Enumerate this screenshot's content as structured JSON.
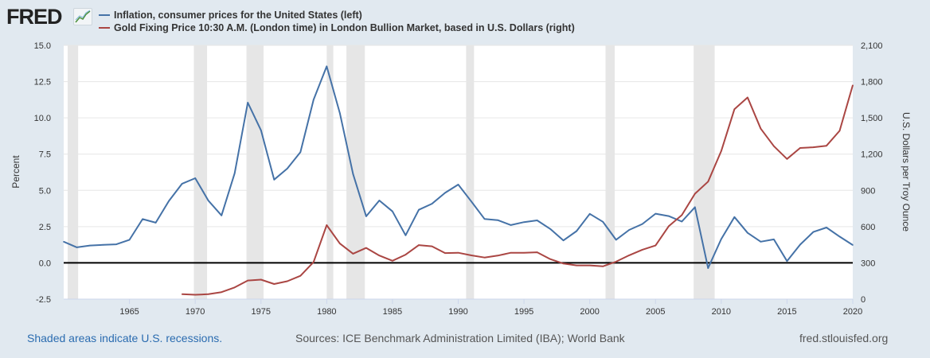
{
  "logo": "FRED",
  "legend": [
    {
      "label": "Inflation, consumer prices for the United States (left)",
      "color": "#4572a7"
    },
    {
      "label": "Gold Fixing Price 10:30 A.M. (London time) in London Bullion Market, based in U.S. Dollars (right)",
      "color": "#aa4643"
    }
  ],
  "footer": {
    "recessions_note": "Shaded areas indicate U.S. recessions.",
    "sources": "Sources: ICE Benchmark Administration Limited (IBA); World Bank",
    "site": "fred.stlouisfed.org"
  },
  "chart_data": {
    "type": "line",
    "xlim": [
      1960,
      2020
    ],
    "x_ticks": [
      "1965",
      "1970",
      "1975",
      "1980",
      "1985",
      "1990",
      "1995",
      "2000",
      "2005",
      "2010",
      "2015",
      "2020"
    ],
    "left_axis": {
      "label": "Percent",
      "ylim": [
        -2.5,
        15.0
      ],
      "ticks": [
        "-2.5",
        "0.0",
        "2.5",
        "5.0",
        "7.5",
        "10.0",
        "12.5",
        "15.0"
      ]
    },
    "right_axis": {
      "label": "U.S. Dollars per Troy Ounce",
      "ylim": [
        0,
        2100
      ],
      "ticks": [
        "0",
        "300",
        "600",
        "900",
        "1,200",
        "1,500",
        "1,800",
        "2,100"
      ]
    },
    "grid": true,
    "recessions": [
      [
        1960.3,
        1961.1
      ],
      [
        1969.9,
        1970.9
      ],
      [
        1973.9,
        1975.2
      ],
      [
        1980.0,
        1980.5
      ],
      [
        1981.5,
        1982.9
      ],
      [
        1990.6,
        1991.2
      ],
      [
        2001.2,
        2001.9
      ],
      [
        2007.9,
        2009.5
      ]
    ],
    "series": [
      {
        "name": "Inflation, consumer prices for the United States",
        "axis": "left",
        "color": "#4572a7",
        "x": [
          1960,
          1961,
          1962,
          1963,
          1964,
          1965,
          1966,
          1967,
          1968,
          1969,
          1970,
          1971,
          1972,
          1973,
          1974,
          1975,
          1976,
          1977,
          1978,
          1979,
          1980,
          1981,
          1982,
          1983,
          1984,
          1985,
          1986,
          1987,
          1988,
          1989,
          1990,
          1991,
          1992,
          1993,
          1994,
          1995,
          1996,
          1997,
          1998,
          1999,
          2000,
          2001,
          2002,
          2003,
          2004,
          2005,
          2006,
          2007,
          2008,
          2009,
          2010,
          2011,
          2012,
          2013,
          2014,
          2015,
          2016,
          2017,
          2018,
          2019,
          2020
        ],
        "values": [
          1.46,
          1.07,
          1.2,
          1.24,
          1.28,
          1.59,
          3.02,
          2.77,
          4.27,
          5.46,
          5.84,
          4.29,
          3.27,
          6.18,
          11.05,
          9.14,
          5.74,
          6.5,
          7.63,
          11.25,
          13.55,
          10.33,
          6.13,
          3.21,
          4.3,
          3.55,
          1.9,
          3.66,
          4.08,
          4.83,
          5.4,
          4.23,
          3.03,
          2.95,
          2.61,
          2.81,
          2.93,
          2.34,
          1.55,
          2.19,
          3.38,
          2.83,
          1.59,
          2.27,
          2.68,
          3.39,
          3.23,
          2.85,
          3.84,
          -0.36,
          1.64,
          3.16,
          2.07,
          1.46,
          1.62,
          0.12,
          1.26,
          2.13,
          2.44,
          1.81,
          1.23
        ]
      },
      {
        "name": "Gold Fixing Price 10:30 A.M. (London time)",
        "axis": "right",
        "color": "#aa4643",
        "x": [
          1969,
          1970,
          1971,
          1972,
          1973,
          1974,
          1975,
          1976,
          1977,
          1978,
          1979,
          1980,
          1981,
          1982,
          1983,
          1984,
          1985,
          1986,
          1987,
          1988,
          1989,
          1990,
          1991,
          1992,
          1993,
          1994,
          1995,
          1996,
          1997,
          1998,
          1999,
          2000,
          2001,
          2002,
          2003,
          2004,
          2005,
          2006,
          2007,
          2008,
          2009,
          2010,
          2011,
          2012,
          2013,
          2014,
          2015,
          2016,
          2017,
          2018,
          2019,
          2020
        ],
        "values": [
          41,
          36,
          41,
          58,
          97,
          154,
          161,
          125,
          148,
          193,
          307,
          612,
          460,
          376,
          424,
          361,
          317,
          368,
          447,
          437,
          381,
          384,
          362,
          344,
          360,
          384,
          384,
          388,
          331,
          294,
          279,
          279,
          271,
          310,
          363,
          409,
          444,
          603,
          695,
          872,
          972,
          1225,
          1572,
          1669,
          1411,
          1266,
          1160,
          1251,
          1257,
          1269,
          1393,
          1770
        ]
      }
    ]
  }
}
